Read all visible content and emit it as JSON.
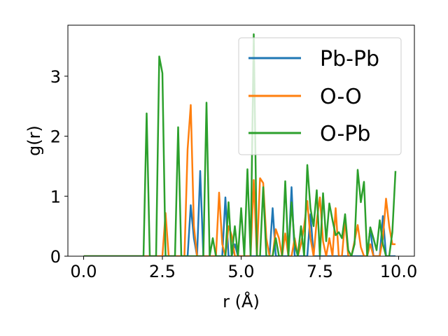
{
  "chart_data": {
    "type": "line",
    "title": "",
    "xlabel": "r (Å)",
    "ylabel": "g(r)",
    "xlim": [
      -0.5,
      10.5
    ],
    "ylim": [
      0,
      3.85
    ],
    "xticks": [
      "0.0",
      "2.5",
      "5.0",
      "7.5",
      "10.0"
    ],
    "xtick_values": [
      0,
      2.5,
      5,
      7.5,
      10
    ],
    "yticks": [
      "0",
      "1",
      "2",
      "3"
    ],
    "ytick_values": [
      0,
      1,
      2,
      3
    ],
    "grid": false,
    "legend_position": "top-right",
    "series": [
      {
        "name": "Pb-Pb",
        "color": "#1f77b4",
        "x": [
          0,
          0.1,
          0.2,
          0.3,
          0.4,
          0.5,
          0.6,
          0.7,
          0.8,
          0.9,
          1.0,
          1.1,
          1.2,
          1.3,
          1.4,
          1.5,
          1.6,
          1.7,
          1.8,
          1.9,
          2.0,
          2.1,
          2.2,
          2.3,
          2.4,
          2.5,
          2.6,
          2.7,
          2.8,
          2.9,
          3.0,
          3.1,
          3.2,
          3.3,
          3.4,
          3.5,
          3.6,
          3.7,
          3.8,
          3.9,
          4.0,
          4.1,
          4.2,
          4.3,
          4.4,
          4.5,
          4.6,
          4.7,
          4.8,
          4.9,
          5.0,
          5.1,
          5.2,
          5.3,
          5.4,
          5.5,
          5.6,
          5.7,
          5.8,
          5.9,
          6.0,
          6.1,
          6.2,
          6.3,
          6.4,
          6.5,
          6.6,
          6.7,
          6.8,
          6.9,
          7.0,
          7.1,
          7.2,
          7.3,
          7.4,
          7.5,
          7.6,
          7.7,
          7.8,
          7.9,
          8.0,
          8.1,
          8.2,
          8.3,
          8.4,
          8.5,
          8.6,
          8.7,
          8.8,
          8.9,
          9.0,
          9.1,
          9.2,
          9.3,
          9.4,
          9.5,
          9.6,
          9.7,
          9.8,
          9.9
        ],
        "values": [
          0,
          0,
          0,
          0,
          0,
          0,
          0,
          0,
          0,
          0,
          0,
          0,
          0,
          0,
          0,
          0,
          0,
          0,
          0,
          0,
          0,
          0,
          0,
          0,
          0,
          0,
          0,
          0,
          0,
          0,
          0,
          0,
          0,
          0,
          0.85,
          0.3,
          0,
          1.42,
          0,
          0,
          0,
          0,
          0,
          0,
          0,
          0.98,
          0,
          0,
          0.2,
          0,
          0,
          0,
          0,
          0,
          0,
          0,
          0,
          0,
          0,
          0,
          0.8,
          0,
          0,
          0,
          0,
          0,
          1.15,
          0,
          0,
          0,
          0,
          0,
          0.7,
          0,
          0,
          0,
          0,
          0,
          0,
          0,
          0,
          0,
          0,
          0,
          0,
          0,
          0,
          0,
          0,
          0,
          0,
          0.48,
          0,
          0,
          0,
          0.67,
          0,
          0,
          0,
          0
        ]
      },
      {
        "name": "O-O",
        "color": "#ff7f0e",
        "x": [
          0,
          0.1,
          0.2,
          0.3,
          0.4,
          0.5,
          0.6,
          0.7,
          0.8,
          0.9,
          1.0,
          1.1,
          1.2,
          1.3,
          1.4,
          1.5,
          1.6,
          1.7,
          1.8,
          1.9,
          2.0,
          2.1,
          2.2,
          2.3,
          2.4,
          2.5,
          2.6,
          2.7,
          2.8,
          2.9,
          3.0,
          3.1,
          3.2,
          3.3,
          3.4,
          3.5,
          3.6,
          3.7,
          3.8,
          3.9,
          4.0,
          4.1,
          4.2,
          4.3,
          4.4,
          4.5,
          4.6,
          4.7,
          4.8,
          4.9,
          5.0,
          5.1,
          5.2,
          5.3,
          5.4,
          5.5,
          5.6,
          5.7,
          5.8,
          5.9,
          6.0,
          6.1,
          6.2,
          6.3,
          6.4,
          6.5,
          6.6,
          6.7,
          6.8,
          6.9,
          7.0,
          7.1,
          7.2,
          7.3,
          7.4,
          7.5,
          7.6,
          7.7,
          7.8,
          7.9,
          8.0,
          8.1,
          8.2,
          8.3,
          8.4,
          8.5,
          8.6,
          8.7,
          8.8,
          8.9,
          9.0,
          9.1,
          9.2,
          9.3,
          9.4,
          9.5,
          9.6,
          9.7,
          9.8,
          9.9
        ],
        "values": [
          0,
          0,
          0,
          0,
          0,
          0,
          0,
          0,
          0,
          0,
          0,
          0,
          0,
          0,
          0,
          0,
          0,
          0,
          0,
          0,
          0,
          0,
          0,
          0,
          0,
          0,
          0.72,
          0,
          0,
          0,
          0,
          0,
          0,
          1.78,
          2.52,
          0.5,
          0,
          0,
          0,
          0,
          0,
          0,
          0,
          1.06,
          0.2,
          0,
          0.5,
          0.35,
          0,
          0,
          0,
          0,
          0,
          0,
          1.27,
          0,
          1.3,
          1.22,
          0.3,
          0,
          0,
          0.45,
          0.3,
          0,
          0.38,
          0,
          0,
          0.3,
          0,
          0.2,
          0.5,
          0.92,
          0.3,
          0,
          0.6,
          0.98,
          0.25,
          0,
          0.3,
          0,
          0.8,
          0,
          0,
          0.6,
          0,
          0,
          0.25,
          0.52,
          0.15,
          0,
          0,
          0.2,
          0,
          0,
          0,
          0.3,
          0.96,
          0.5,
          0.2,
          0.2
        ]
      },
      {
        "name": "O-Pb",
        "color": "#2ca02c",
        "x": [
          0,
          0.1,
          0.2,
          0.3,
          0.4,
          0.5,
          0.6,
          0.7,
          0.8,
          0.9,
          1.0,
          1.1,
          1.2,
          1.3,
          1.4,
          1.5,
          1.6,
          1.7,
          1.8,
          1.9,
          2.0,
          2.1,
          2.2,
          2.3,
          2.4,
          2.5,
          2.6,
          2.7,
          2.8,
          2.9,
          3.0,
          3.1,
          3.2,
          3.3,
          3.4,
          3.5,
          3.6,
          3.7,
          3.8,
          3.9,
          4.0,
          4.1,
          4.2,
          4.3,
          4.4,
          4.5,
          4.6,
          4.7,
          4.8,
          4.9,
          5.0,
          5.1,
          5.2,
          5.3,
          5.4,
          5.5,
          5.6,
          5.7,
          5.8,
          5.9,
          6.0,
          6.1,
          6.2,
          6.3,
          6.4,
          6.5,
          6.6,
          6.7,
          6.8,
          6.9,
          7.0,
          7.1,
          7.2,
          7.3,
          7.4,
          7.5,
          7.6,
          7.7,
          7.8,
          7.9,
          8.0,
          8.1,
          8.2,
          8.3,
          8.4,
          8.5,
          8.6,
          8.7,
          8.8,
          8.9,
          9.0,
          9.1,
          9.2,
          9.3,
          9.4,
          9.5,
          9.6,
          9.7,
          9.8,
          9.9
        ],
        "values": [
          0,
          0,
          0,
          0,
          0,
          0,
          0,
          0,
          0,
          0,
          0,
          0,
          0,
          0,
          0,
          0,
          0,
          0,
          0,
          0,
          2.38,
          0,
          0,
          0,
          3.33,
          3.05,
          0,
          0,
          0,
          0,
          2.15,
          0,
          0,
          0,
          0,
          0,
          0,
          0,
          0,
          2.56,
          0,
          0.3,
          0,
          0,
          0,
          0,
          0.9,
          0,
          0.5,
          0,
          0.8,
          0,
          1.45,
          0,
          3.7,
          0,
          0,
          1.15,
          0,
          0,
          0,
          0.3,
          0,
          0,
          1.25,
          0,
          0.9,
          0.2,
          0,
          0.5,
          0,
          1.52,
          0.8,
          0.5,
          1.1,
          0,
          1.05,
          0.25,
          0.88,
          0.6,
          0.35,
          0.4,
          0.3,
          0.7,
          0.1,
          0,
          0.2,
          1.44,
          0.9,
          1.24,
          0,
          0.48,
          0.3,
          0.1,
          0.6,
          0.2,
          0,
          0,
          0.4,
          1.42
        ]
      }
    ]
  }
}
